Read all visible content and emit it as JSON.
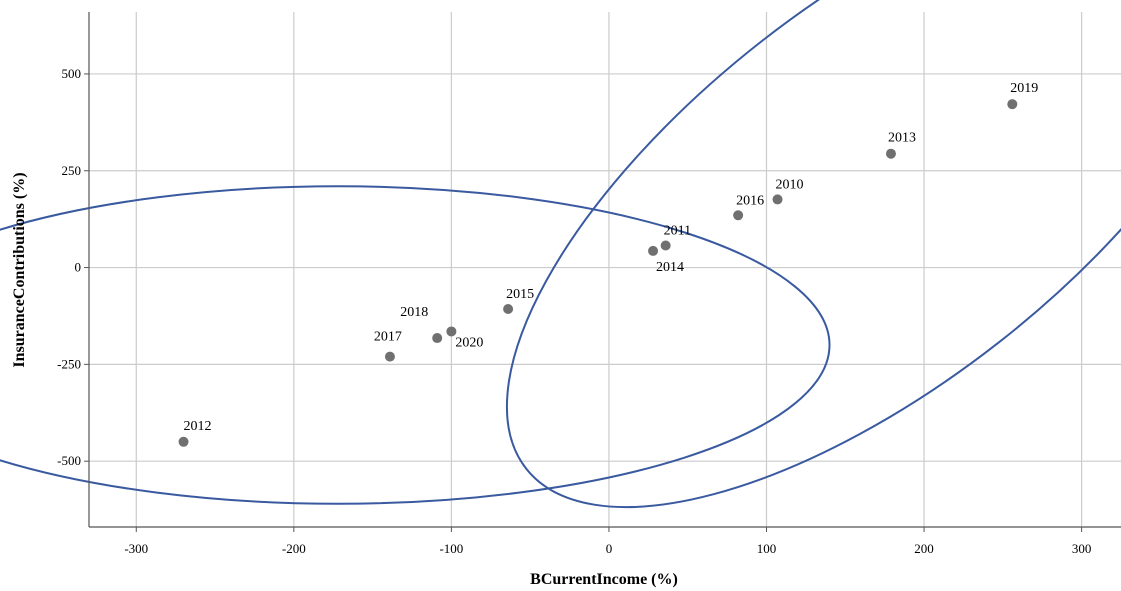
{
  "chart_data": {
    "type": "scatter",
    "xlabel": "BCurrentIncome (%)",
    "ylabel": "InsuranceContributions (%)",
    "xlim": [
      -330,
      325
    ],
    "ylim": [
      -670,
      660
    ],
    "x_ticks": [
      -300,
      -200,
      -100,
      0,
      100,
      200,
      300
    ],
    "y_ticks": [
      -500,
      -250,
      0,
      250,
      500
    ],
    "grid": true,
    "point_color": "#707070",
    "ellipse_color": "#3a5aa0",
    "points": [
      {
        "label": "2012",
        "x": -270,
        "y": -450
      },
      {
        "label": "2017",
        "x": -139,
        "y": -230
      },
      {
        "label": "2018",
        "x": -109,
        "y": -182
      },
      {
        "label": "2020",
        "x": -100,
        "y": -165
      },
      {
        "label": "2015",
        "x": -64,
        "y": -107
      },
      {
        "label": "2014",
        "x": 28,
        "y": 43
      },
      {
        "label": "2011",
        "x": 36,
        "y": 57
      },
      {
        "label": "2016",
        "x": 82,
        "y": 135
      },
      {
        "label": "2010",
        "x": 107,
        "y": 176
      },
      {
        "label": "2013",
        "x": 179,
        "y": 294
      },
      {
        "label": "2019",
        "x": 256,
        "y": 422
      }
    ],
    "ellipses": [
      {
        "cx": -172,
        "cy": -200,
        "rx": 312,
        "ry": 410,
        "angle_deg": 0
      },
      {
        "cx": 172,
        "cy": 195,
        "rx": 285,
        "ry": 495,
        "angle_deg": -38
      }
    ]
  }
}
